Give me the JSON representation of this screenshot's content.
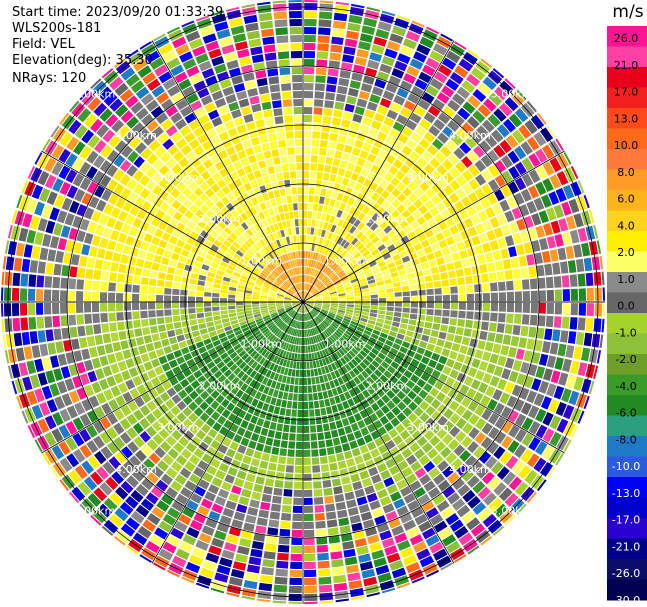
{
  "header": {
    "start_time": "Start time: 2023/09/20 01:33:39",
    "instrument": "WLS200s-181",
    "field": "Field: VEL",
    "elevation": "Elevation(deg): 35.30",
    "nrays": "NRays: 120"
  },
  "chart_data": {
    "type": "heatmap",
    "subtype": "polar-ppi",
    "title": "",
    "field": "VEL",
    "units": "m/s",
    "nrays": 120,
    "elevation_deg": 35.3,
    "range_ring_labels": [
      "1.00km",
      "2.00km",
      "3.00km",
      "4.00km",
      "5.00km"
    ],
    "colorbar": {
      "label": "m/s",
      "ticks": [
        "26.0",
        "21.0",
        "17.0",
        "13.0",
        "10.0",
        "8.0",
        "6.0",
        "4.0",
        "2.0",
        "1.0",
        "0.0",
        "-1.0",
        "-2.0",
        "-4.0",
        "-6.0",
        "-8.0",
        "-10.0",
        "-13.0",
        "-17.0",
        "-21.0",
        "-26.0",
        "-30.0"
      ],
      "colors": [
        "#ff1493",
        "#ff3fa3",
        "#e8001a",
        "#f41f1f",
        "#ff4a1c",
        "#ff6a1a",
        "#ff7a3a",
        "#ff9a26",
        "#ffb319",
        "#ffd21e",
        "#ffee00",
        "#ffff66",
        "#8a8a8a",
        "#666666",
        "#a6d22e",
        "#8fc03a",
        "#6f9e2a",
        "#3a9a2a",
        "#228a22",
        "#2aa080",
        "#1f7ac8",
        "#2a5ae0",
        "#0000ff",
        "#0000cc",
        "#2a00d0",
        "#00008b",
        "#0c0c6a",
        "#000050"
      ]
    },
    "velocity_pattern": {
      "north_half": "positive (yellow 1-4 m/s, orange 6-8 m/s near center)",
      "south_half": "negative (green -2 to -8 m/s)",
      "outer_ring": "noise / random velocities"
    }
  }
}
